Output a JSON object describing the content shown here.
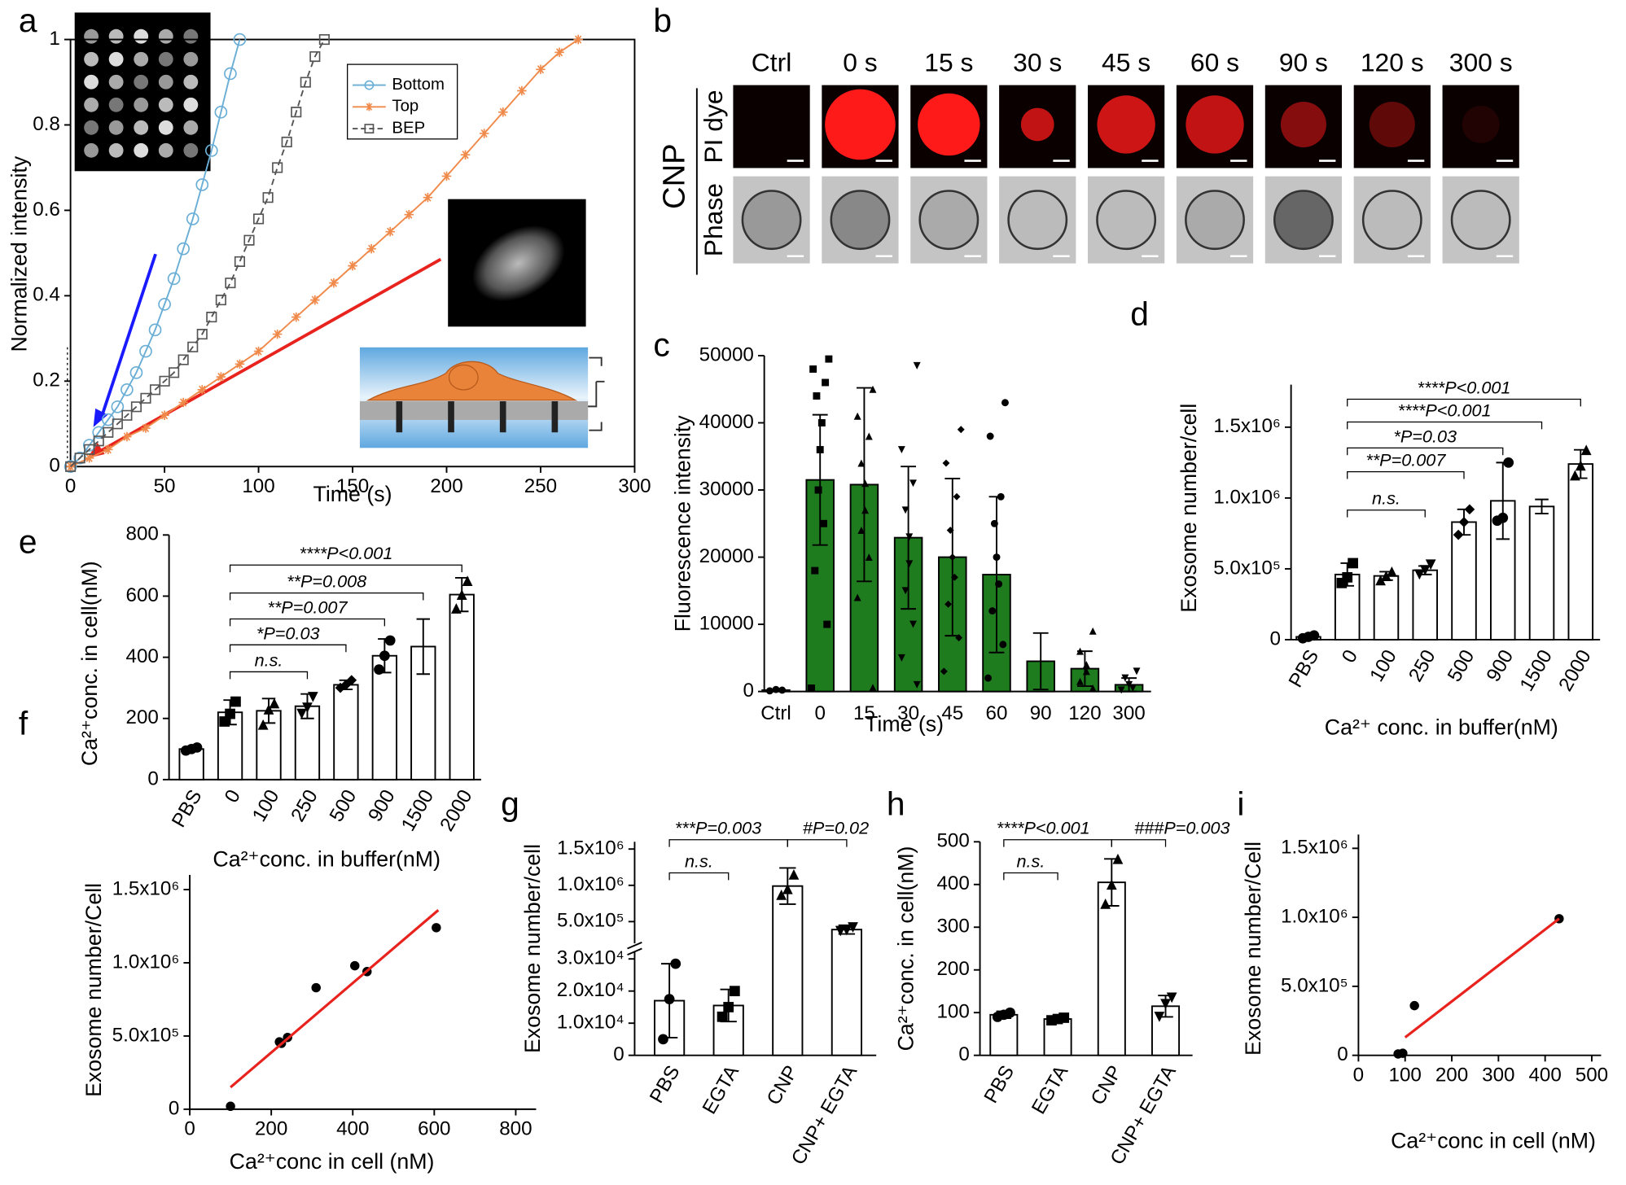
{
  "image_panel": {
    "panel": "b",
    "columns": [
      "Ctrl",
      "0 s",
      "15 s",
      "30 s",
      "45 s",
      "60 s",
      "90 s",
      "120 s",
      "300 s"
    ],
    "rows": [
      "PI dye",
      "Phase"
    ],
    "group": "CNP"
  },
  "chart_data": [
    {
      "panel": "a",
      "type": "line",
      "x_label": "Time (s)",
      "y_label": "Normalized intensity",
      "xlim": [
        0,
        300
      ],
      "ylim": [
        0,
        1
      ],
      "xticks": [
        0,
        50,
        100,
        150,
        200,
        250,
        300
      ],
      "yticks": [
        0,
        0.2,
        0.4,
        0.6,
        0.8,
        1
      ],
      "series": [
        {
          "name": "Bottom",
          "color": "#6aaed6",
          "marker": "circle",
          "x": [
            0,
            5,
            10,
            15,
            20,
            25,
            30,
            35,
            40,
            45,
            50,
            55,
            60,
            65,
            70,
            75,
            80,
            85,
            90
          ],
          "values": [
            0,
            0.02,
            0.05,
            0.08,
            0.11,
            0.14,
            0.18,
            0.22,
            0.27,
            0.32,
            0.38,
            0.44,
            0.51,
            0.58,
            0.66,
            0.74,
            0.83,
            0.92,
            1
          ]
        },
        {
          "name": "Top",
          "color": "#f08a4b",
          "marker": "star",
          "x": [
            0,
            10,
            20,
            30,
            40,
            50,
            60,
            70,
            80,
            90,
            100,
            110,
            120,
            130,
            140,
            150,
            160,
            170,
            180,
            190,
            200,
            210,
            220,
            230,
            240,
            250,
            260,
            270
          ],
          "values": [
            0,
            0.02,
            0.04,
            0.07,
            0.09,
            0.12,
            0.15,
            0.18,
            0.21,
            0.24,
            0.27,
            0.31,
            0.35,
            0.39,
            0.43,
            0.47,
            0.51,
            0.55,
            0.59,
            0.63,
            0.68,
            0.73,
            0.78,
            0.83,
            0.88,
            0.93,
            0.97,
            1
          ]
        },
        {
          "name": "BEP",
          "color": "#555555",
          "marker": "square",
          "line_style": "dashed",
          "x": [
            0,
            5,
            10,
            15,
            20,
            25,
            30,
            35,
            40,
            45,
            50,
            55,
            60,
            65,
            70,
            75,
            80,
            85,
            90,
            95,
            100,
            105,
            110,
            115,
            120,
            125,
            130,
            135
          ],
          "values": [
            0,
            0.02,
            0.04,
            0.06,
            0.08,
            0.1,
            0.12,
            0.14,
            0.16,
            0.18,
            0.2,
            0.22,
            0.25,
            0.28,
            0.31,
            0.35,
            0.39,
            0.43,
            0.48,
            0.53,
            0.58,
            0.63,
            0.7,
            0.76,
            0.83,
            0.9,
            0.96,
            1
          ]
        }
      ]
    },
    {
      "panel": "c",
      "type": "bar",
      "x_label": "Time (s)",
      "y_label": "Fluorescence intensity",
      "color": "#1e7b1e",
      "categories": [
        "Ctrl",
        "0",
        "15",
        "30",
        "45",
        "60",
        "90",
        "120",
        "300"
      ],
      "values": [
        200,
        31500,
        30800,
        22900,
        20000,
        17400,
        4500,
        3400,
        1000
      ],
      "errors": [
        100,
        9700,
        14400,
        10600,
        11700,
        11600,
        4200,
        2600,
        1000
      ],
      "points": [
        [
          200,
          300,
          100
        ],
        [
          49500,
          48000,
          46000,
          44000,
          40000,
          36000,
          30000,
          25000,
          18000,
          10000,
          500
        ],
        [
          45000,
          41000,
          38000,
          34000,
          31000,
          27000,
          24000,
          20000,
          14000,
          600
        ],
        [
          48500,
          36000,
          31000,
          27000,
          23000,
          19000,
          15000,
          10000,
          5000,
          1000
        ],
        [
          39000,
          34000,
          29000,
          24000,
          20000,
          17000,
          13000,
          8000,
          3000
        ],
        [
          43000,
          38000,
          29000,
          25000,
          20000,
          16000,
          12000,
          7000,
          2000
        ],
        [
          10000,
          8000,
          6000,
          4000,
          2000,
          500
        ],
        [
          9000,
          6000,
          4000,
          3000,
          1500,
          500
        ],
        [
          3000,
          2000,
          1000,
          500,
          200
        ]
      ],
      "ylim": [
        0,
        50000
      ],
      "yticks": [
        0,
        10000,
        20000,
        30000,
        40000,
        50000
      ]
    },
    {
      "panel": "d",
      "type": "bar",
      "x_label": "Ca²⁺ conc. in buffer(nM)",
      "y_label": "Exosome number/cell",
      "color": "#ffffff",
      "categories": [
        "PBS",
        "0",
        "100",
        "250",
        "500",
        "900",
        "1500",
        "2000"
      ],
      "values": [
        20000,
        460000,
        450000,
        490000,
        830000,
        980000,
        940000,
        1240000
      ],
      "errors": [
        10000,
        80000,
        30000,
        30000,
        90000,
        270000,
        50000,
        100000
      ],
      "points": [
        [
          30000,
          20000,
          10000
        ],
        [
          540000,
          440000,
          400000
        ],
        [
          480000,
          450000,
          420000
        ],
        [
          530000,
          490000,
          460000
        ],
        [
          920000,
          830000,
          740000
        ],
        [
          1250000,
          860000,
          840000
        ],
        [
          980000,
          940000,
          910000
        ],
        [
          1340000,
          1230000,
          1160000
        ]
      ],
      "ylim": [
        0,
        1800000
      ],
      "yticks": [
        0,
        {
          "value": 500000,
          "label": "5.0x10⁵"
        },
        {
          "value": 1000000,
          "label": "1.0x10⁶"
        },
        {
          "value": 1500000,
          "label": "1.5x10⁶"
        }
      ],
      "annotations": [
        {
          "text": "n.s.",
          "from": 1,
          "to": 3
        },
        {
          "text": "**P=0.007",
          "from": 1,
          "to": 4
        },
        {
          "text": "*P=0.03",
          "from": 1,
          "to": 5
        },
        {
          "text": "****P<0.001",
          "from": 1,
          "to": 6
        },
        {
          "text": "****P<0.001",
          "from": 1,
          "to": 7
        }
      ]
    },
    {
      "panel": "e",
      "type": "bar",
      "x_label": "Ca²⁺conc. in buffer(nM)",
      "y_label": "Ca²⁺conc. in cell(nM)",
      "color": "#ffffff",
      "categories": [
        "PBS",
        "0",
        "100",
        "250",
        "500",
        "900",
        "1500",
        "2000"
      ],
      "values": [
        100,
        220,
        225,
        240,
        310,
        405,
        435,
        605
      ],
      "errors": [
        5,
        40,
        40,
        40,
        15,
        55,
        90,
        55
      ],
      "points": [
        [
          105,
          100,
          95
        ],
        [
          255,
          215,
          190
        ],
        [
          250,
          230,
          180
        ],
        [
          270,
          235,
          215
        ],
        [
          325,
          310,
          300
        ],
        [
          455,
          405,
          360
        ],
        [
          500,
          430,
          380
        ],
        [
          650,
          605,
          560
        ]
      ],
      "ylim": [
        0,
        800
      ],
      "yticks": [
        0,
        200,
        400,
        600,
        800
      ],
      "annotations": [
        {
          "text": "n.s.",
          "from": 1,
          "to": 3
        },
        {
          "text": "*P=0.03",
          "from": 1,
          "to": 4
        },
        {
          "text": "**P=0.007",
          "from": 1,
          "to": 5
        },
        {
          "text": "**P=0.008",
          "from": 1,
          "to": 6
        },
        {
          "text": "****P<0.001",
          "from": 1,
          "to": 7
        }
      ]
    },
    {
      "panel": "f",
      "type": "scatter",
      "x_label": "Ca²⁺conc in cell (nM)",
      "y_label": "Exosome number/Cell",
      "x": [
        100,
        220,
        225,
        240,
        310,
        405,
        435,
        605
      ],
      "values": [
        20000,
        460000,
        450000,
        490000,
        830000,
        980000,
        940000,
        1240000
      ],
      "fit": {
        "color": "#e8231e",
        "x": [
          100,
          610
        ],
        "values": [
          150000,
          1360000
        ]
      },
      "xlim": [
        0,
        850
      ],
      "xticks": [
        0,
        200,
        400,
        600,
        800
      ],
      "ylim": [
        0,
        1600000
      ],
      "yticks": [
        0,
        {
          "value": 500000,
          "label": "5.0x10⁵"
        },
        {
          "value": 1000000,
          "label": "1.0x10⁶"
        },
        {
          "value": 1500000,
          "label": "1.5x10⁶"
        }
      ]
    },
    {
      "panel": "g",
      "type": "bar",
      "y_label": "Exosome number/cell",
      "color": "#ffffff",
      "categories": [
        "PBS",
        "EGTA",
        "CNP",
        "CNP+\nEGTA"
      ],
      "values": [
        17000,
        15500,
        990000,
        390000
      ],
      "errors": [
        11500,
        5000,
        250000,
        60000
      ],
      "points": [
        [
          28500,
          17500,
          5000
        ],
        [
          20000,
          15000,
          12000
        ],
        [
          1150000,
          950000,
          870000
        ],
        [
          420000,
          380000,
          370000
        ]
      ],
      "ylim": [
        0,
        1600000
      ],
      "ybreak": [
        30000,
        300000
      ],
      "yticks": [
        0,
        {
          "value": 10000,
          "label": "1.0x10⁴"
        },
        {
          "value": 20000,
          "label": "2.0x10⁴"
        },
        {
          "value": 30000,
          "label": "3.0x10⁴"
        },
        {
          "value": 500000,
          "label": "5.0x10⁵"
        },
        {
          "value": 1000000,
          "label": "1.0x10⁶"
        },
        {
          "value": 1500000,
          "label": "1.5x10⁶"
        }
      ],
      "annotations": [
        {
          "text": "n.s.",
          "from": 0,
          "to": 1
        },
        {
          "text": "***P=0.003",
          "from": 0,
          "to": 2
        },
        {
          "text": "#P=0.02",
          "from": 2,
          "to": 3
        }
      ]
    },
    {
      "panel": "h",
      "type": "bar",
      "y_label": "Ca²⁺conc. in cell(nM)",
      "color": "#ffffff",
      "categories": [
        "PBS",
        "EGTA",
        "CNP",
        "CNP+\nEGTA"
      ],
      "values": [
        95,
        85,
        405,
        115
      ],
      "errors": [
        8,
        5,
        55,
        25
      ],
      "points": [
        [
          100,
          95,
          90
        ],
        [
          88,
          85,
          82
        ],
        [
          460,
          400,
          355
        ],
        [
          135,
          120,
          90
        ]
      ],
      "ylim": [
        0,
        500
      ],
      "yticks": [
        0,
        100,
        200,
        300,
        400,
        500
      ],
      "annotations": [
        {
          "text": "n.s.",
          "from": 0,
          "to": 1
        },
        {
          "text": "****P<0.001",
          "from": 0,
          "to": 2
        },
        {
          "text": "###P=0.003",
          "from": 2,
          "to": 3
        }
      ]
    },
    {
      "panel": "i",
      "type": "scatter",
      "x_label": "Ca²⁺conc in cell (nM)",
      "y_label": "Exosome number/Cell",
      "x": [
        85,
        95,
        120,
        430
      ],
      "values": [
        10000,
        15000,
        360000,
        990000
      ],
      "fit": {
        "color": "#e8231e",
        "x": [
          100,
          430
        ],
        "values": [
          130000,
          990000
        ]
      },
      "xlim": [
        0,
        520
      ],
      "xticks": [
        0,
        100,
        200,
        300,
        400,
        500
      ],
      "ylim": [
        0,
        1600000
      ],
      "yticks": [
        0,
        {
          "value": 500000,
          "label": "5.0x10⁵"
        },
        {
          "value": 1000000,
          "label": "1.0x10⁶"
        },
        {
          "value": 1500000,
          "label": "1.5x10⁶"
        }
      ]
    }
  ]
}
